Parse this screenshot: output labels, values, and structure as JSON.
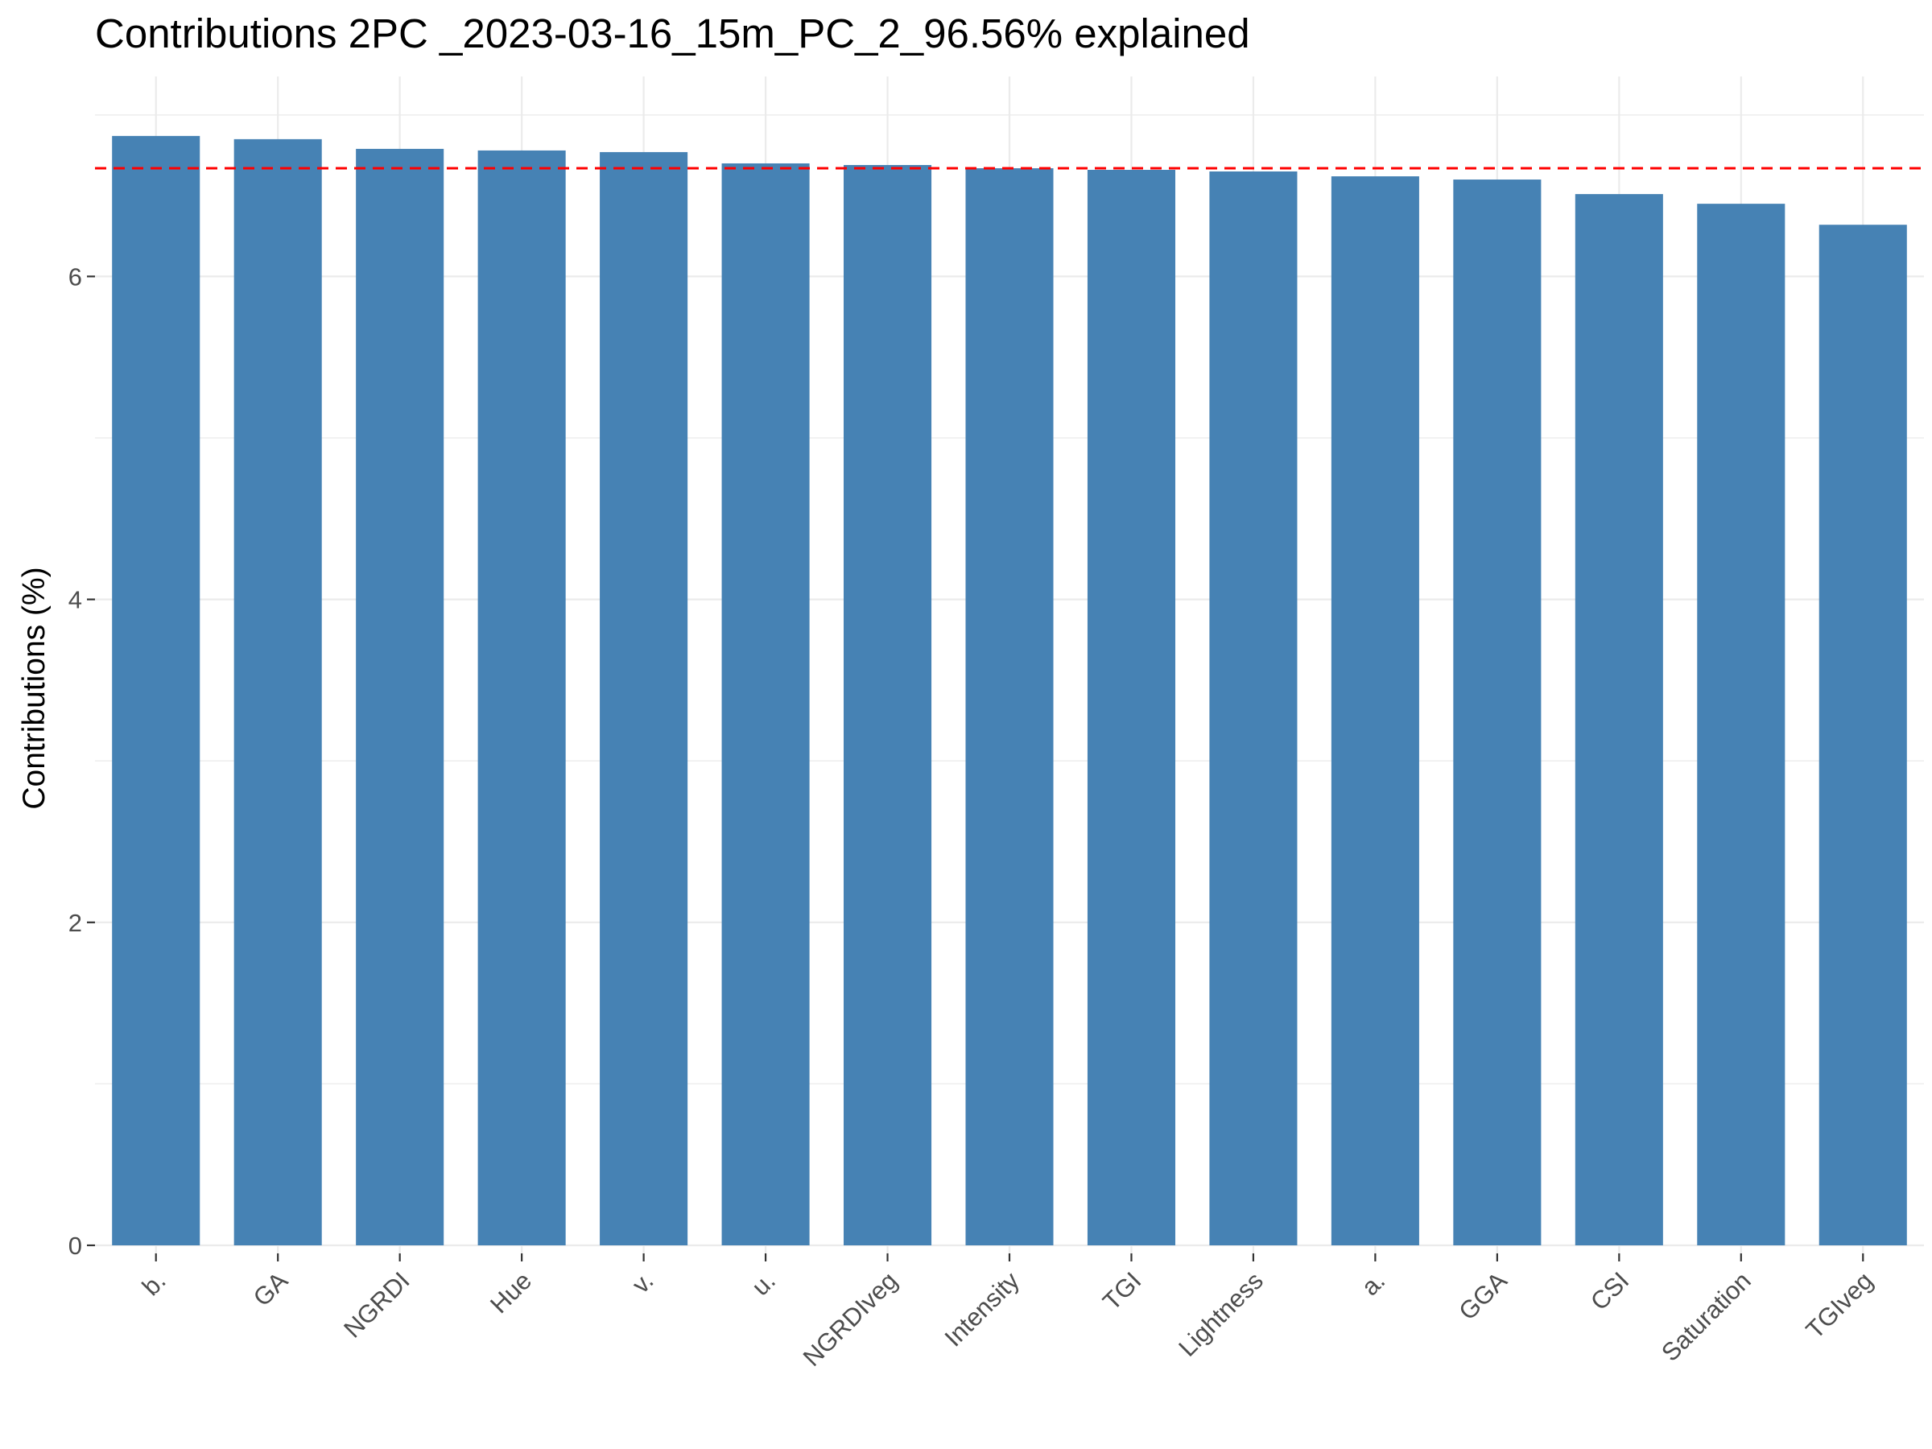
{
  "chart_data": {
    "type": "bar",
    "title": "Contributions 2PC _2023-03-16_15m_PC_2_96.56% explained",
    "xlabel": "",
    "ylabel": "Contributions (%)",
    "categories": [
      "b.",
      "GA",
      "NGRDI",
      "Hue",
      "v.",
      "u.",
      "NGRDIveg",
      "Intensity",
      "TGI",
      "Lightness",
      "a.",
      "GGA",
      "CSI",
      "Saturation",
      "TGIveg"
    ],
    "values": [
      6.87,
      6.85,
      6.79,
      6.78,
      6.77,
      6.7,
      6.69,
      6.67,
      6.66,
      6.65,
      6.62,
      6.6,
      6.51,
      6.45,
      6.32
    ],
    "reference_line": 6.67,
    "ylim": [
      0,
      7.1
    ],
    "yticks": [
      0,
      2,
      4,
      6
    ],
    "grid": true,
    "bar_color": "#4682B4",
    "reference_line_color": "#FF0000"
  }
}
